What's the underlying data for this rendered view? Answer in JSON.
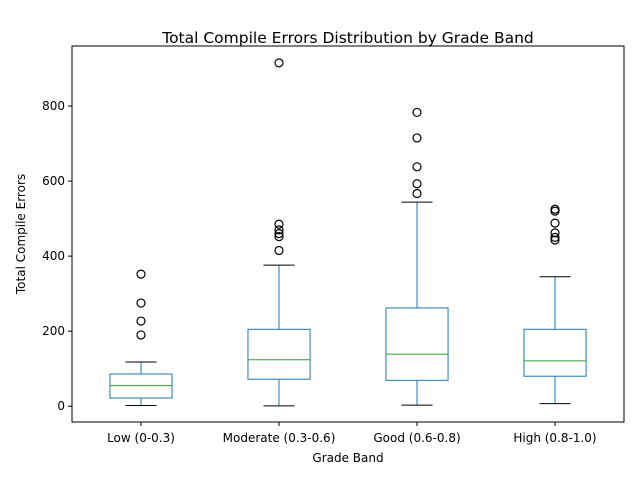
{
  "chart_data": {
    "type": "boxplot",
    "title": "Total Compile Errors Distribution by Grade Band",
    "xlabel": "Grade Band",
    "ylabel": "Total Compile Errors",
    "ylim": [
      -42,
      960
    ],
    "yticks": [
      0,
      200,
      400,
      600,
      800
    ],
    "grid": false,
    "colors": {
      "box": "#1f77b4",
      "median": "#2ca02c",
      "whisker": "#1f77b4",
      "cap": "#000000",
      "flier": "#000000"
    },
    "categories": [
      "Low (0-0.3)",
      "Moderate (0.3-0.6)",
      "Good (0.6-0.8)",
      "High (0.8-1.0)"
    ],
    "boxes": [
      {
        "category": "Low (0-0.3)",
        "whisker_low": 2,
        "q1": 22,
        "median": 55,
        "q3": 86,
        "whisker_high": 118,
        "fliers": [
          190,
          227,
          275,
          352
        ]
      },
      {
        "category": "Moderate (0.3-0.6)",
        "whisker_low": 1,
        "q1": 72,
        "median": 124,
        "q3": 205,
        "whisker_high": 376,
        "fliers": [
          415,
          452,
          460,
          470,
          485,
          915
        ]
      },
      {
        "category": "Good (0.6-0.8)",
        "whisker_low": 3,
        "q1": 69,
        "median": 139,
        "q3": 262,
        "whisker_high": 544,
        "fliers": [
          567,
          593,
          638,
          715,
          783
        ]
      },
      {
        "category": "High (0.8-1.0)",
        "whisker_low": 7,
        "q1": 80,
        "median": 121,
        "q3": 205,
        "whisker_high": 345,
        "fliers": [
          443,
          450,
          462,
          488,
          520,
          525
        ]
      }
    ]
  }
}
